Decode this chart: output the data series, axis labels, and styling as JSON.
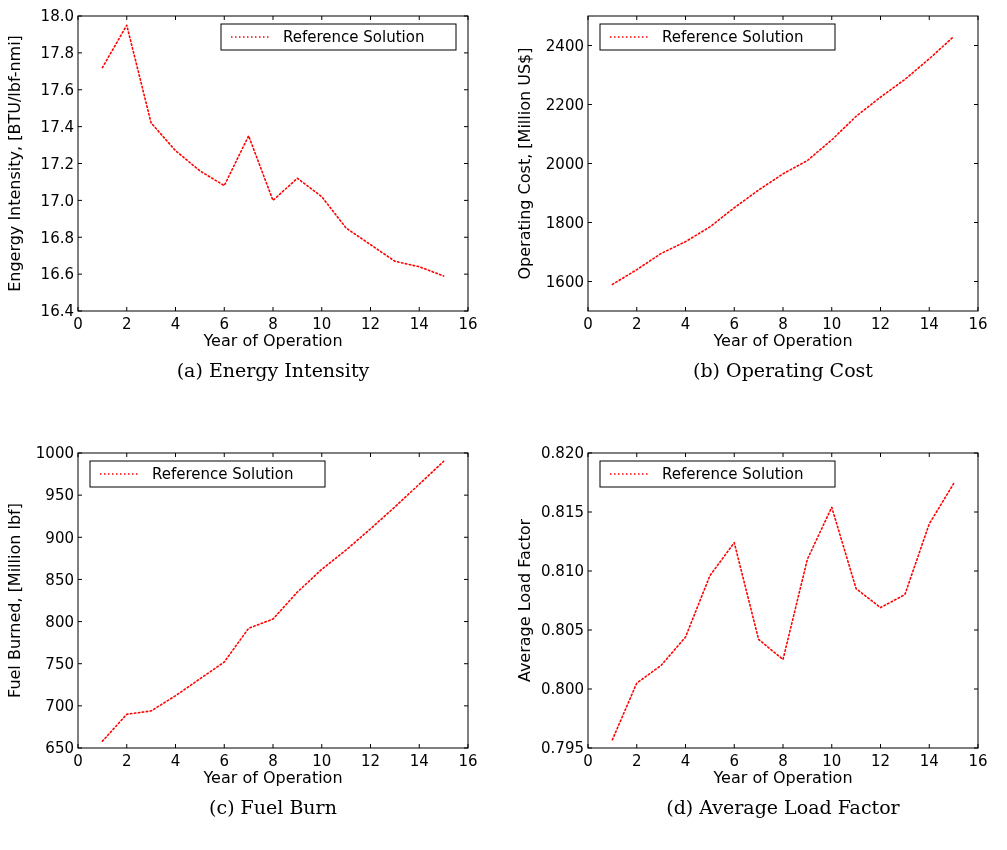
{
  "chart_data": [
    {
      "type": "line",
      "title": "(a) Energy Intensity",
      "xlabel": "Year of Operation",
      "ylabel": "Engergy Intensity, [BTU/lbf-nmi]",
      "x": [
        1,
        2,
        3,
        4,
        5,
        6,
        7,
        8,
        9,
        10,
        11,
        12,
        13,
        14,
        15
      ],
      "series": [
        {
          "name": "Reference Solution",
          "color": "#ff0000",
          "values": [
            17.72,
            17.95,
            17.42,
            17.27,
            17.16,
            17.08,
            17.35,
            17.0,
            17.12,
            17.02,
            16.85,
            16.76,
            16.67,
            16.64,
            16.59
          ]
        }
      ],
      "xlim": [
        0,
        16
      ],
      "xticks": [
        0,
        2,
        4,
        6,
        8,
        10,
        12,
        14,
        16
      ],
      "ylim": [
        16.4,
        18.0
      ],
      "yticks": [
        16.4,
        16.6,
        16.8,
        {
          "value": 17,
          "label": "17.0"
        },
        17.2,
        17.4,
        17.6,
        17.8,
        {
          "value": 18,
          "label": "18.0"
        }
      ],
      "legend": "top right",
      "line_style": "dotted",
      "grid": false
    },
    {
      "type": "line",
      "title": "(b) Operating Cost",
      "xlabel": "Year of Operation",
      "ylabel": "Operating Cost, [Million US$]",
      "x": [
        1,
        2,
        3,
        4,
        5,
        6,
        7,
        8,
        9,
        10,
        11,
        12,
        13,
        14,
        15
      ],
      "series": [
        {
          "name": "Reference Solution",
          "color": "#ff0000",
          "values": [
            1590,
            1640,
            1695,
            1735,
            1785,
            1850,
            1910,
            1965,
            2010,
            2080,
            2160,
            2225,
            2285,
            2355,
            2430
          ]
        }
      ],
      "xlim": [
        0,
        16
      ],
      "xticks": [
        0,
        2,
        4,
        6,
        8,
        10,
        12,
        14,
        16
      ],
      "ylim": [
        1500,
        2500
      ],
      "yticks": [
        1600,
        1800,
        2000,
        2200,
        2400
      ],
      "legend": "top left",
      "line_style": "dotted",
      "grid": false
    },
    {
      "type": "line",
      "title": "(c) Fuel Burn",
      "xlabel": "Year of Operation",
      "ylabel": "Fuel Burned, [Million lbf]",
      "x": [
        1,
        2,
        3,
        4,
        5,
        6,
        7,
        8,
        9,
        10,
        11,
        12,
        13,
        14,
        15
      ],
      "series": [
        {
          "name": "Reference Solution",
          "color": "#ff0000",
          "values": [
            658,
            690,
            694,
            712,
            732,
            752,
            792,
            803,
            835,
            862,
            885,
            910,
            936,
            963,
            990
          ]
        }
      ],
      "xlim": [
        0,
        16
      ],
      "xticks": [
        0,
        2,
        4,
        6,
        8,
        10,
        12,
        14,
        16
      ],
      "ylim": [
        650,
        1000
      ],
      "yticks": [
        650,
        700,
        750,
        800,
        850,
        900,
        950,
        1000
      ],
      "legend": "top left",
      "line_style": "dotted",
      "grid": false
    },
    {
      "type": "line",
      "title": "(d) Average Load Factor",
      "xlabel": "Year of Operation",
      "ylabel": "Average Load Factor",
      "x": [
        1,
        2,
        3,
        4,
        5,
        6,
        7,
        8,
        9,
        10,
        11,
        12,
        13,
        14,
        15
      ],
      "series": [
        {
          "name": "Reference Solution",
          "color": "#ff0000",
          "values": [
            0.7957,
            0.8005,
            0.802,
            0.8044,
            0.8096,
            0.8124,
            0.8042,
            0.8025,
            0.811,
            0.8154,
            0.8085,
            0.8069,
            0.808,
            0.814,
            0.8174
          ]
        }
      ],
      "xlim": [
        0,
        16
      ],
      "xticks": [
        0,
        2,
        4,
        6,
        8,
        10,
        12,
        14,
        16
      ],
      "ylim": [
        0.795,
        0.82
      ],
      "yticks": [
        0.795,
        {
          "value": 0.8,
          "label": "0.800"
        },
        0.805,
        {
          "value": 0.81,
          "label": "0.810"
        },
        0.815,
        {
          "value": 0.82,
          "label": "0.820"
        }
      ],
      "legend": "top left",
      "line_style": "dotted",
      "grid": false
    }
  ]
}
